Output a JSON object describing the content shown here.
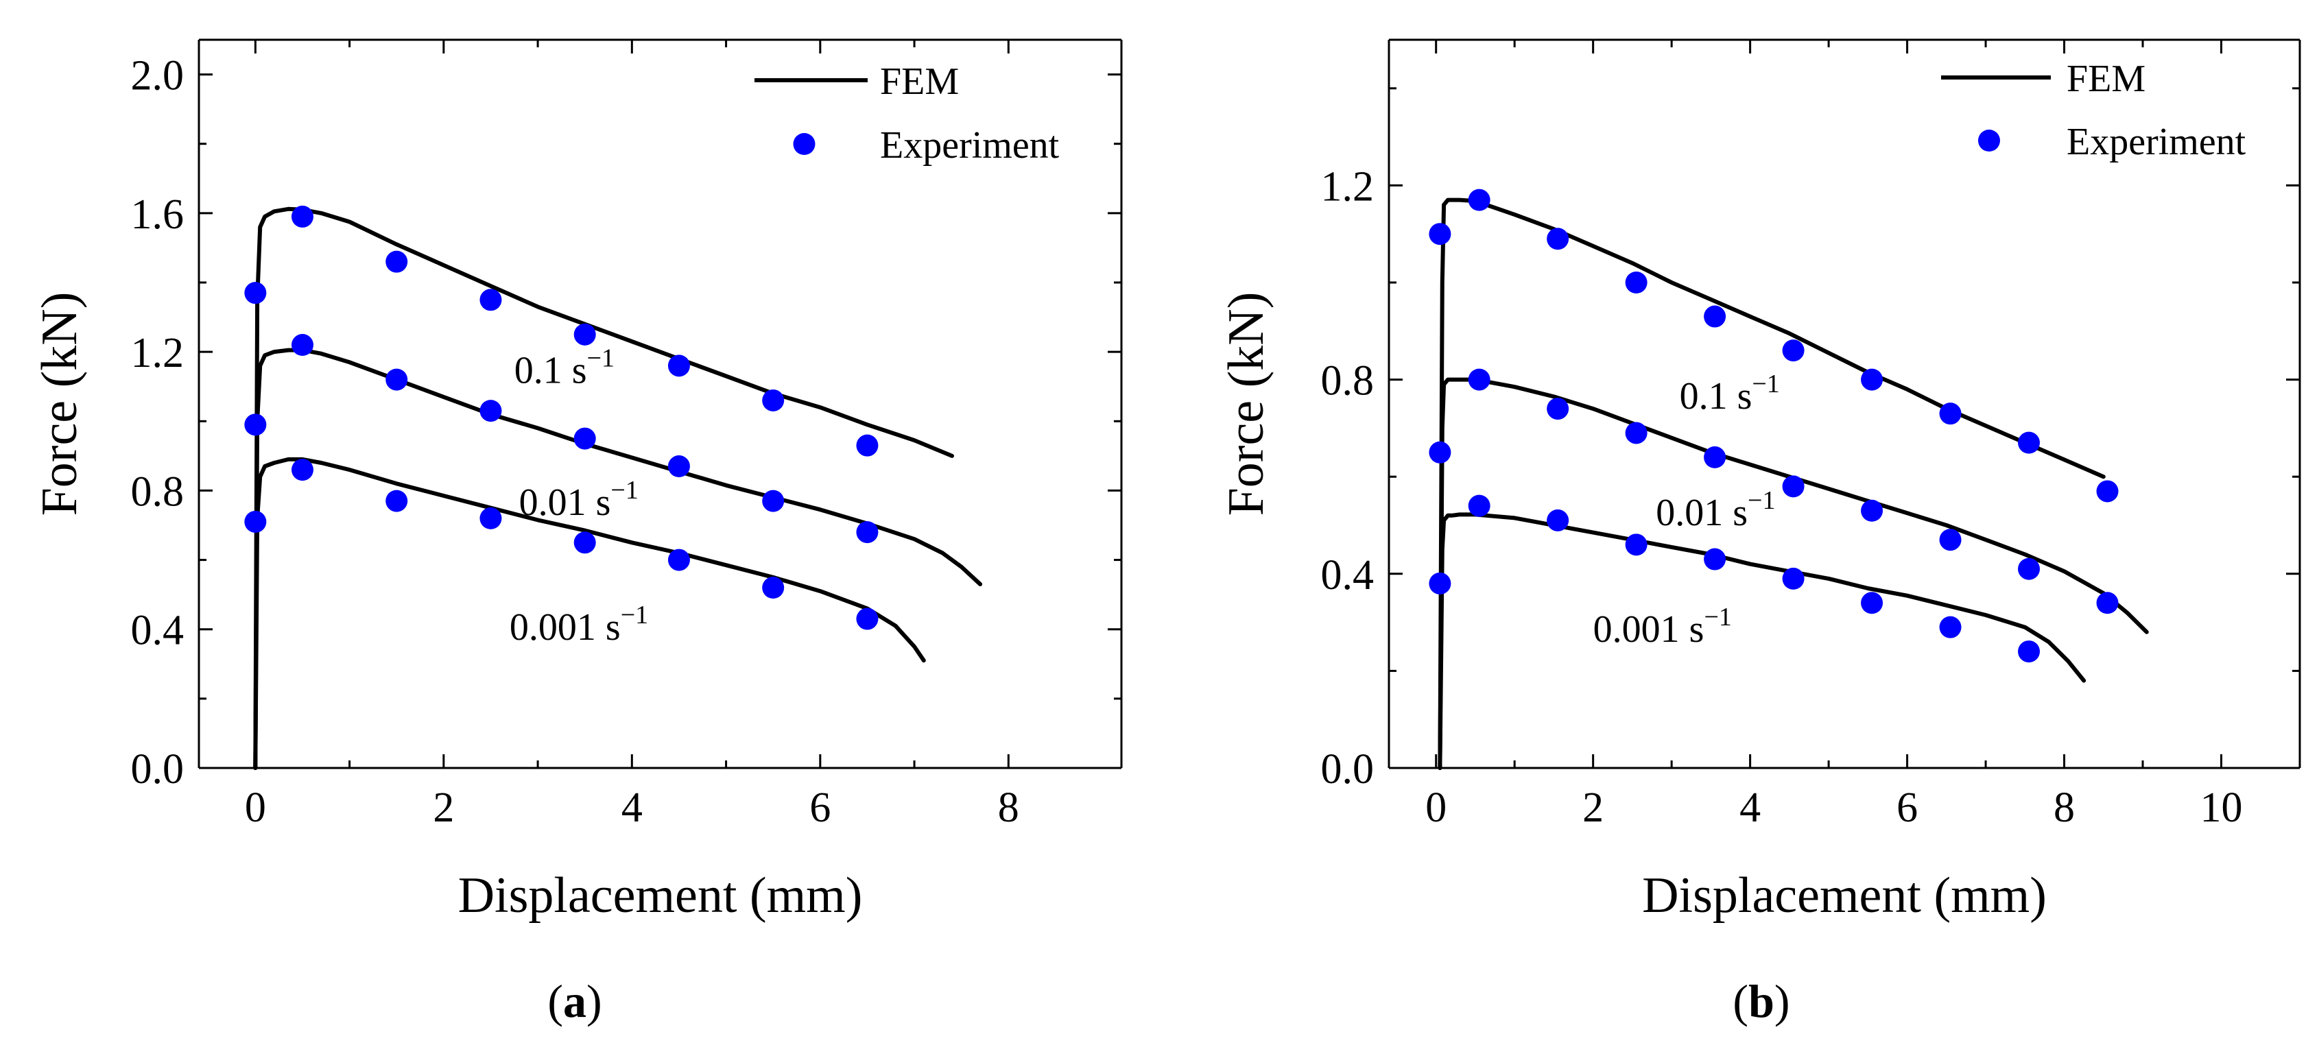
{
  "chart_data": [
    {
      "type": "line",
      "panel": "(a)",
      "panel_letter": "a",
      "xlabel": "Displacement (mm)",
      "ylabel": "Force (kN)",
      "xlim": [
        -0.6,
        9.2
      ],
      "ylim": [
        0.0,
        2.1
      ],
      "xticks": [
        0,
        2,
        4,
        6,
        8
      ],
      "yticks": [
        0.0,
        0.4,
        0.8,
        1.2,
        1.6,
        2.0
      ],
      "xtick_labels": [
        "0",
        "2",
        "4",
        "6",
        "8"
      ],
      "ytick_labels": [
        "0.0",
        "0.4",
        "0.8",
        "1.2",
        "1.6",
        "2.0"
      ],
      "legend": {
        "position": "top-right",
        "entries": [
          "FEM",
          "Experiment"
        ]
      },
      "series": [
        {
          "name": "0.1 s",
          "sup": "−1",
          "label_at": [
            2.75,
            1.11
          ],
          "fem": {
            "x": [
              0,
              0.02,
              0.05,
              0.1,
              0.2,
              0.35,
              0.5,
              0.7,
              1.0,
              1.5,
              2.0,
              2.5,
              3.0,
              3.5,
              4.0,
              4.5,
              5.0,
              5.5,
              6.0,
              6.5,
              7.0,
              7.4
            ],
            "y": [
              0,
              1.35,
              1.56,
              1.59,
              1.605,
              1.612,
              1.61,
              1.6,
              1.575,
              1.51,
              1.45,
              1.39,
              1.33,
              1.28,
              1.23,
              1.18,
              1.13,
              1.08,
              1.04,
              0.99,
              0.945,
              0.9
            ]
          },
          "experiment": {
            "x": [
              0,
              0.5,
              1.5,
              2.5,
              3.5,
              4.5,
              5.5,
              6.5
            ],
            "y": [
              1.37,
              1.59,
              1.46,
              1.35,
              1.25,
              1.16,
              1.06,
              0.93
            ]
          }
        },
        {
          "name": "0.01 s",
          "sup": "−1",
          "label_at": [
            2.8,
            0.73
          ],
          "fem": {
            "x": [
              0,
              0.02,
              0.05,
              0.1,
              0.2,
              0.35,
              0.5,
              0.7,
              1.0,
              1.5,
              2.0,
              2.5,
              3.0,
              3.5,
              4.0,
              4.5,
              5.0,
              5.5,
              6.0,
              6.5,
              7.0,
              7.3,
              7.5,
              7.7
            ],
            "y": [
              0,
              1.0,
              1.16,
              1.19,
              1.2,
              1.205,
              1.205,
              1.195,
              1.17,
              1.12,
              1.07,
              1.02,
              0.98,
              0.935,
              0.895,
              0.855,
              0.815,
              0.78,
              0.745,
              0.705,
              0.66,
              0.62,
              0.58,
              0.53
            ]
          },
          "experiment": {
            "x": [
              0,
              0.5,
              1.5,
              2.5,
              3.5,
              4.5,
              5.5,
              6.5
            ],
            "y": [
              0.99,
              1.22,
              1.12,
              1.03,
              0.95,
              0.87,
              0.77,
              0.68
            ]
          }
        },
        {
          "name": "0.001 s",
          "sup": "−1",
          "label_at": [
            2.7,
            0.37
          ],
          "fem": {
            "x": [
              0,
              0.02,
              0.05,
              0.1,
              0.2,
              0.35,
              0.5,
              0.7,
              1.0,
              1.5,
              2.0,
              2.5,
              3.0,
              3.5,
              4.0,
              4.5,
              5.0,
              5.5,
              6.0,
              6.5,
              6.8,
              7.0,
              7.1
            ],
            "y": [
              0,
              0.72,
              0.84,
              0.87,
              0.88,
              0.89,
              0.89,
              0.88,
              0.86,
              0.82,
              0.785,
              0.75,
              0.715,
              0.685,
              0.65,
              0.62,
              0.585,
              0.55,
              0.51,
              0.46,
              0.41,
              0.35,
              0.31
            ]
          },
          "experiment": {
            "x": [
              0,
              0.5,
              1.5,
              2.5,
              3.5,
              4.5,
              5.5,
              6.5
            ],
            "y": [
              0.71,
              0.86,
              0.77,
              0.72,
              0.65,
              0.6,
              0.52,
              0.43
            ]
          }
        }
      ]
    },
    {
      "type": "line",
      "panel": "(b)",
      "panel_letter": "b",
      "xlabel": "Displacement (mm)",
      "ylabel": "Force (kN)",
      "xlim": [
        -0.6,
        11.0
      ],
      "ylim": [
        0.0,
        1.5
      ],
      "xticks": [
        0,
        2,
        4,
        6,
        8,
        10
      ],
      "yticks": [
        0.0,
        0.4,
        0.8,
        1.2
      ],
      "xtick_labels": [
        "0",
        "2",
        "4",
        "6",
        "8",
        "10"
      ],
      "ytick_labels": [
        "0.0",
        "0.4",
        "0.8",
        "1.2"
      ],
      "legend": {
        "position": "top-right",
        "entries": [
          "FEM",
          "Experiment"
        ]
      },
      "series": [
        {
          "name": "0.1 s",
          "sup": "−1",
          "label_at": [
            3.1,
            0.74
          ],
          "fem": {
            "x": [
              0.05,
              0.08,
              0.1,
              0.15,
              0.2,
              0.3,
              0.5,
              1.0,
              1.5,
              2.0,
              2.5,
              3.0,
              3.5,
              4.0,
              4.5,
              5.0,
              5.5,
              6.0,
              6.5,
              7.0,
              7.5,
              8.0,
              8.5
            ],
            "y": [
              0,
              1.0,
              1.16,
              1.17,
              1.17,
              1.17,
              1.168,
              1.14,
              1.11,
              1.075,
              1.04,
              1.0,
              0.965,
              0.93,
              0.895,
              0.855,
              0.815,
              0.78,
              0.74,
              0.705,
              0.67,
              0.635,
              0.6
            ]
          },
          "experiment": {
            "x": [
              0.05,
              0.55,
              1.55,
              2.55,
              3.55,
              4.55,
              5.55,
              6.55,
              7.55,
              8.55
            ],
            "y": [
              1.1,
              1.17,
              1.09,
              1.0,
              0.93,
              0.86,
              0.8,
              0.73,
              0.67,
              0.57
            ]
          }
        },
        {
          "name": "0.01 s",
          "sup": "−1",
          "label_at": [
            2.8,
            0.5
          ],
          "fem": {
            "x": [
              0.05,
              0.08,
              0.1,
              0.15,
              0.2,
              0.3,
              0.5,
              1.0,
              1.5,
              2.0,
              2.5,
              3.0,
              3.5,
              4.0,
              4.5,
              5.0,
              5.5,
              6.0,
              6.5,
              7.0,
              7.5,
              8.0,
              8.5,
              8.8,
              9.05
            ],
            "y": [
              0,
              0.7,
              0.79,
              0.8,
              0.8,
              0.8,
              0.8,
              0.785,
              0.765,
              0.74,
              0.71,
              0.68,
              0.65,
              0.625,
              0.6,
              0.575,
              0.55,
              0.525,
              0.5,
              0.47,
              0.44,
              0.405,
              0.36,
              0.32,
              0.28
            ]
          },
          "experiment": {
            "x": [
              0.05,
              0.55,
              1.55,
              2.55,
              3.55,
              4.55,
              5.55,
              6.55,
              7.55,
              8.55
            ],
            "y": [
              0.65,
              0.8,
              0.74,
              0.69,
              0.64,
              0.58,
              0.53,
              0.47,
              0.41,
              0.34
            ]
          }
        },
        {
          "name": "0.001 s",
          "sup": "−1",
          "label_at": [
            2.0,
            0.26
          ],
          "fem": {
            "x": [
              0.05,
              0.08,
              0.1,
              0.15,
              0.2,
              0.3,
              0.5,
              1.0,
              1.5,
              2.0,
              2.5,
              3.0,
              3.5,
              4.0,
              4.5,
              5.0,
              5.5,
              6.0,
              6.5,
              7.0,
              7.5,
              7.8,
              8.05,
              8.25
            ],
            "y": [
              0,
              0.45,
              0.51,
              0.52,
              0.52,
              0.522,
              0.522,
              0.515,
              0.5,
              0.485,
              0.47,
              0.455,
              0.44,
              0.42,
              0.405,
              0.39,
              0.37,
              0.355,
              0.335,
              0.315,
              0.29,
              0.26,
              0.22,
              0.18
            ]
          },
          "experiment": {
            "x": [
              0.05,
              0.55,
              1.55,
              2.55,
              3.55,
              4.55,
              5.55,
              6.55,
              7.55
            ],
            "y": [
              0.38,
              0.54,
              0.51,
              0.46,
              0.43,
              0.39,
              0.34,
              0.29,
              0.24
            ]
          }
        }
      ]
    }
  ],
  "colors": {
    "fem_line": "#000000",
    "experiment_marker": "#0000ff",
    "axes": "#000000"
  }
}
